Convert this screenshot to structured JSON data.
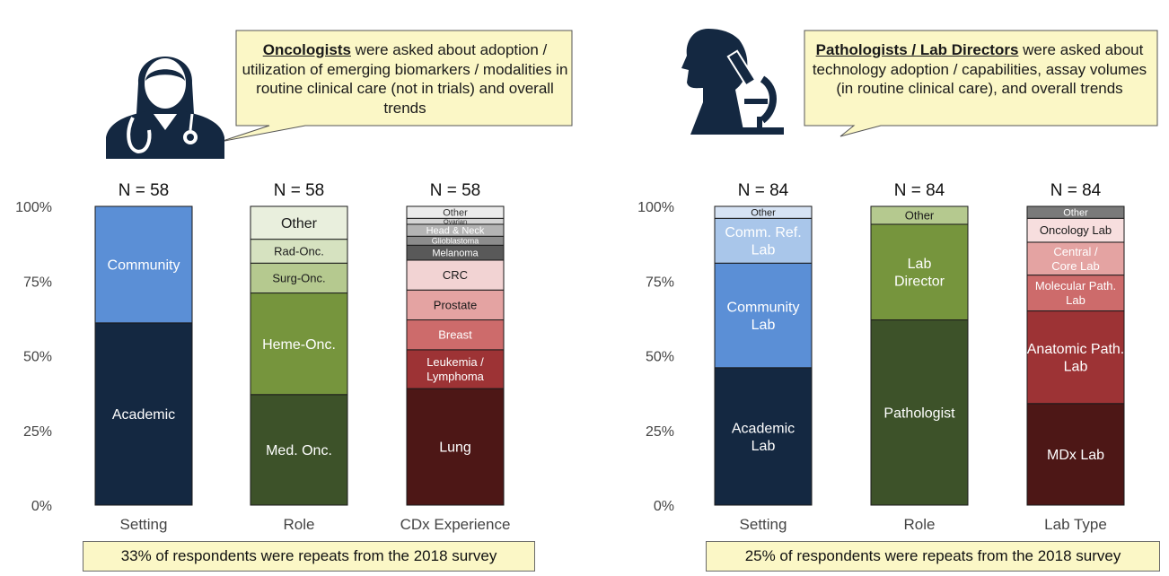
{
  "panels": [
    {
      "callout": {
        "bold": "Oncologists",
        "text": " were asked about adoption / utilization of emerging biomarkers / modalities in routine clinical care (not in trials) and overall trends"
      },
      "footnote": "33% of respondents were repeats from the 2018 survey"
    },
    {
      "callout": {
        "bold": "Pathologists / Lab Directors",
        "text": " were asked about technology adoption / capabilities, assay volumes (in routine clinical care), and overall trends"
      },
      "footnote": "25% of respondents were repeats from the 2018 survey"
    }
  ],
  "icons": {
    "left": "oncologist-doctor-icon",
    "right": "pathologist-microscope-icon"
  },
  "colors": {
    "callout_fill": "#fbf7c6",
    "dark_navy": "#142841",
    "blue": "#5b8fd6",
    "light_blue": "#a9c6ea",
    "dark_green": "#3d5229",
    "green": "#76953d",
    "light_green": "#b5c98f",
    "dark_red": "#4d1716",
    "red": "#9d3335",
    "rose": "#cd6b6b"
  },
  "chart_data": [
    {
      "type": "bar",
      "stacked": true,
      "ylim": [
        0,
        100
      ],
      "yticks": [
        "0%",
        "25%",
        "50%",
        "75%",
        "100%"
      ],
      "categories": [
        "Setting",
        "Role",
        "CDx Experience"
      ],
      "n_labels": [
        "N = 58",
        "N = 58",
        "N = 58"
      ],
      "bars": [
        {
          "segments": [
            {
              "label": "Academic",
              "value": 61,
              "color": "#142841",
              "text_color": "#ffffff"
            },
            {
              "label": "Community",
              "value": 39,
              "color": "#5b8fd6",
              "text_color": "#ffffff"
            }
          ]
        },
        {
          "segments": [
            {
              "label": "Med. Onc.",
              "value": 37,
              "color": "#3d5229",
              "text_color": "#ffffff"
            },
            {
              "label": "Heme-Onc.",
              "value": 34,
              "color": "#76953d",
              "text_color": "#ffffff"
            },
            {
              "label": "Surg-Onc.",
              "value": 10,
              "color": "#b5c98f",
              "text_color": "#1a1a1a"
            },
            {
              "label": "Rad-Onc.",
              "value": 8,
              "color": "#d6e2c0",
              "text_color": "#1a1a1a"
            },
            {
              "label": "Other",
              "value": 11,
              "color": "#e9efdd",
              "text_color": "#1a1a1a"
            }
          ]
        },
        {
          "segments": [
            {
              "label": "Lung",
              "value": 39,
              "color": "#4d1716",
              "text_color": "#ffffff"
            },
            {
              "label": "Leukemia / Lymphoma",
              "value": 13,
              "color": "#9d3335",
              "text_color": "#ffffff"
            },
            {
              "label": "Breast",
              "value": 10,
              "color": "#cd6b6b",
              "text_color": "#ffffff"
            },
            {
              "label": "Prostate",
              "value": 10,
              "color": "#e4a3a2",
              "text_color": "#1a1a1a"
            },
            {
              "label": "CRC",
              "value": 10,
              "color": "#f2d3d3",
              "text_color": "#1a1a1a"
            },
            {
              "label": "Melanoma",
              "value": 5,
              "color": "#595959",
              "text_color": "#ffffff"
            },
            {
              "label": "Glioblastoma",
              "value": 3,
              "color": "#8c8c8c",
              "text_color": "#ffffff"
            },
            {
              "label": "Head & Neck",
              "value": 4,
              "color": "#b4b4b4",
              "text_color": "#ffffff"
            },
            {
              "label": "Ovarian",
              "value": 2,
              "color": "#d4d4d4",
              "text_color": "#333333"
            },
            {
              "label": "Other",
              "value": 4,
              "color": "#ececec",
              "text_color": "#333333"
            }
          ]
        }
      ]
    },
    {
      "type": "bar",
      "stacked": true,
      "ylim": [
        0,
        100
      ],
      "yticks": [
        "0%",
        "25%",
        "50%",
        "75%",
        "100%"
      ],
      "categories": [
        "Setting",
        "Role",
        "Lab Type"
      ],
      "n_labels": [
        "N = 84",
        "N = 84",
        "N = 84"
      ],
      "bars": [
        {
          "segments": [
            {
              "label": "Academic Lab",
              "value": 46,
              "color": "#142841",
              "text_color": "#ffffff"
            },
            {
              "label": "Community Lab",
              "value": 35,
              "color": "#5b8fd6",
              "text_color": "#ffffff"
            },
            {
              "label": "Comm. Ref. Lab",
              "value": 15,
              "color": "#a9c6ea",
              "text_color": "#ffffff"
            },
            {
              "label": "Other",
              "value": 4,
              "color": "#d6e3f4",
              "text_color": "#1a1a1a"
            }
          ]
        },
        {
          "segments": [
            {
              "label": "Pathologist",
              "value": 62,
              "color": "#3d5229",
              "text_color": "#ffffff"
            },
            {
              "label": "Lab Director",
              "value": 32,
              "color": "#76953d",
              "text_color": "#ffffff"
            },
            {
              "label": "Other",
              "value": 6,
              "color": "#b5c98f",
              "text_color": "#1a1a1a"
            }
          ]
        },
        {
          "segments": [
            {
              "label": "MDx Lab",
              "value": 34,
              "color": "#4d1716",
              "text_color": "#ffffff"
            },
            {
              "label": "Anatomic Path. Lab",
              "value": 31,
              "color": "#9d3335",
              "text_color": "#ffffff"
            },
            {
              "label": "Molecular Path. Lab",
              "value": 12,
              "color": "#cd6b6b",
              "text_color": "#ffffff"
            },
            {
              "label": "Central / Core Lab",
              "value": 11,
              "color": "#e4a3a2",
              "text_color": "#ffffff"
            },
            {
              "label": "Oncology Lab",
              "value": 8,
              "color": "#f7dede",
              "text_color": "#1a1a1a"
            },
            {
              "label": "Other",
              "value": 4,
              "color": "#7a7a7a",
              "text_color": "#ffffff"
            }
          ]
        }
      ]
    }
  ]
}
